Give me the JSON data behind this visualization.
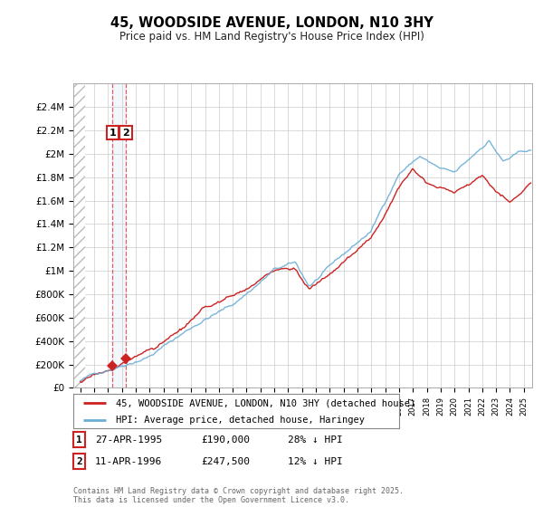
{
  "title": "45, WOODSIDE AVENUE, LONDON, N10 3HY",
  "subtitle": "Price paid vs. HM Land Registry's House Price Index (HPI)",
  "ylim": [
    0,
    2600000
  ],
  "yticks": [
    0,
    200000,
    400000,
    600000,
    800000,
    1000000,
    1200000,
    1400000,
    1600000,
    1800000,
    2000000,
    2200000,
    2400000
  ],
  "ytick_labels": [
    "£0",
    "£200K",
    "£400K",
    "£600K",
    "£800K",
    "£1M",
    "£1.2M",
    "£1.4M",
    "£1.6M",
    "£1.8M",
    "£2M",
    "£2.2M",
    "£2.4M"
  ],
  "hpi_color": "#6baed6",
  "price_color": "#cc2222",
  "purchase1_date": 1995.32,
  "purchase1_price": 190000,
  "purchase2_date": 1996.28,
  "purchase2_price": 247500,
  "legend_label1": "45, WOODSIDE AVENUE, LONDON, N10 3HY (detached house)",
  "legend_label2": "HPI: Average price, detached house, Haringey",
  "table_row1": [
    "1",
    "27-APR-1995",
    "£190,000",
    "28% ↓ HPI"
  ],
  "table_row2": [
    "2",
    "11-APR-1996",
    "£247,500",
    "12% ↓ HPI"
  ],
  "footnote": "Contains HM Land Registry data © Crown copyright and database right 2025.\nThis data is licensed under the Open Government Licence v3.0.",
  "background_color": "#ffffff"
}
